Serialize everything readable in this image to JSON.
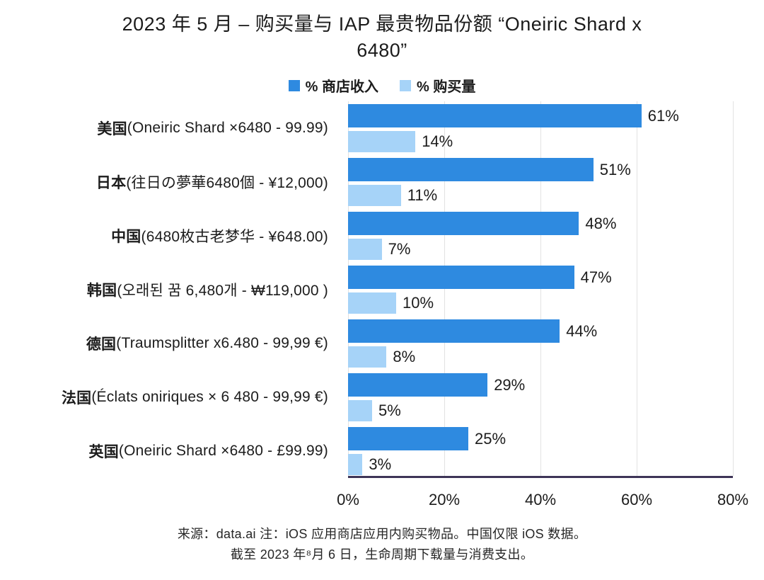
{
  "title": "2023 年 5 月 – 购买量与 IAP 最贵物品份额 “Oneiric Shard x 6480”",
  "legend": {
    "items": [
      {
        "label": "% 商店收入",
        "color": "#2E8AE0"
      },
      {
        "label": "% 购买量",
        "color": "#A6D3F8"
      }
    ]
  },
  "chart_data": {
    "type": "bar",
    "orientation": "horizontal",
    "title": "2023 年 5 月 – 购买量与 IAP 最贵物品份额 “Oneiric Shard x 6480”",
    "categories": [
      {
        "country": "美国",
        "item": "(Oneiric Shard ×6480 - 99.99)"
      },
      {
        "country": "日本",
        "item": "(往日の夢華6480個 - ¥12,000)"
      },
      {
        "country": "中国",
        "item": "(6480枚古老梦华 - ¥648.00)"
      },
      {
        "country": "韩国",
        "item": "(오래된 꿈 6,480개 - ₩119,000 )"
      },
      {
        "country": "德国",
        "item": "(Traumsplitter x6.480 - 99,99 €)"
      },
      {
        "country": "法国",
        "item": "(Éclats oniriques × 6 480 - 99,99 €)"
      },
      {
        "country": "英国",
        "item": "(Oneiric Shard ×6480 - £99.99)"
      }
    ],
    "series": [
      {
        "name": "% 商店收入",
        "color": "#2E8AE0",
        "unit": "%",
        "values": [
          61,
          51,
          48,
          47,
          44,
          29,
          25
        ]
      },
      {
        "name": "% 购买量",
        "color": "#A6D3F8",
        "unit": "%",
        "values": [
          14,
          11,
          7,
          10,
          8,
          5,
          3
        ]
      }
    ],
    "xlim": [
      0,
      80
    ],
    "x_tick_values": [
      0,
      20,
      40,
      60,
      80
    ],
    "x_tick_labels": [
      "0%",
      "20%",
      "40%",
      "60%",
      "80%"
    ],
    "grid": "vertical",
    "legend_position": "top",
    "value_labels": true
  },
  "colors": {
    "store_revenue": "#2E8AE0",
    "purchase_volume": "#A6D3F8",
    "axis_line": "#3E3557",
    "gridline": "#E2E2E2",
    "text": "#1C1C1C"
  },
  "footer": {
    "line1": "来源：data.ai 注：iOS 应用商店应用内购买物品。中国仅限 iOS 数据。",
    "line2": "截至 2023 年⁸月 6 日，生命周期下载量与消费支出。"
  }
}
